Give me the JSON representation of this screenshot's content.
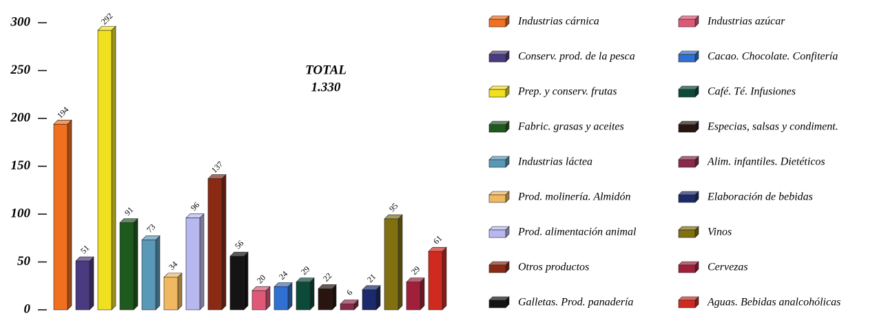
{
  "chart_data": {
    "type": "bar3d",
    "annotation": [
      "TOTAL",
      "1.330"
    ],
    "categories": [
      "Industrias cárnica",
      "Conserv. prod. de la pesca",
      "Prep. y conserv. frutas",
      "Fabric. grasas y aceites",
      "Industrias láctea",
      "Prod. molinería. Almidón",
      "Prod. alimentación animal",
      "Otros productos",
      "Galletas. Prod. panadería",
      "Industrias azúcar",
      "Cacao. Chocolate. Confitería",
      "Café. Té. Infusiones",
      "Especias, salsas y condiment.",
      "Alim. infantiles. Dietéticos",
      "Elaboración de bebidas",
      "Vinos",
      "Cervezas",
      "Aguas. Bebidas analcohólicas"
    ],
    "values": [
      194,
      51,
      292,
      91,
      73,
      34,
      96,
      137,
      56,
      20,
      24,
      29,
      22,
      6,
      21,
      95,
      29,
      61
    ],
    "colors": [
      "#f07020",
      "#4a3a80",
      "#f0e020",
      "#1e5a1e",
      "#5a98b8",
      "#f0b860",
      "#b8b8f0",
      "#8a2a14",
      "#141414",
      "#e05878",
      "#3070d0",
      "#0e4a3a",
      "#2a1410",
      "#8a2a4a",
      "#1a2a6a",
      "#807010",
      "#a0203a",
      "#d02a20"
    ],
    "ylim": [
      0,
      300
    ],
    "yticks": [
      0,
      50,
      100,
      150,
      200,
      250,
      300
    ]
  }
}
